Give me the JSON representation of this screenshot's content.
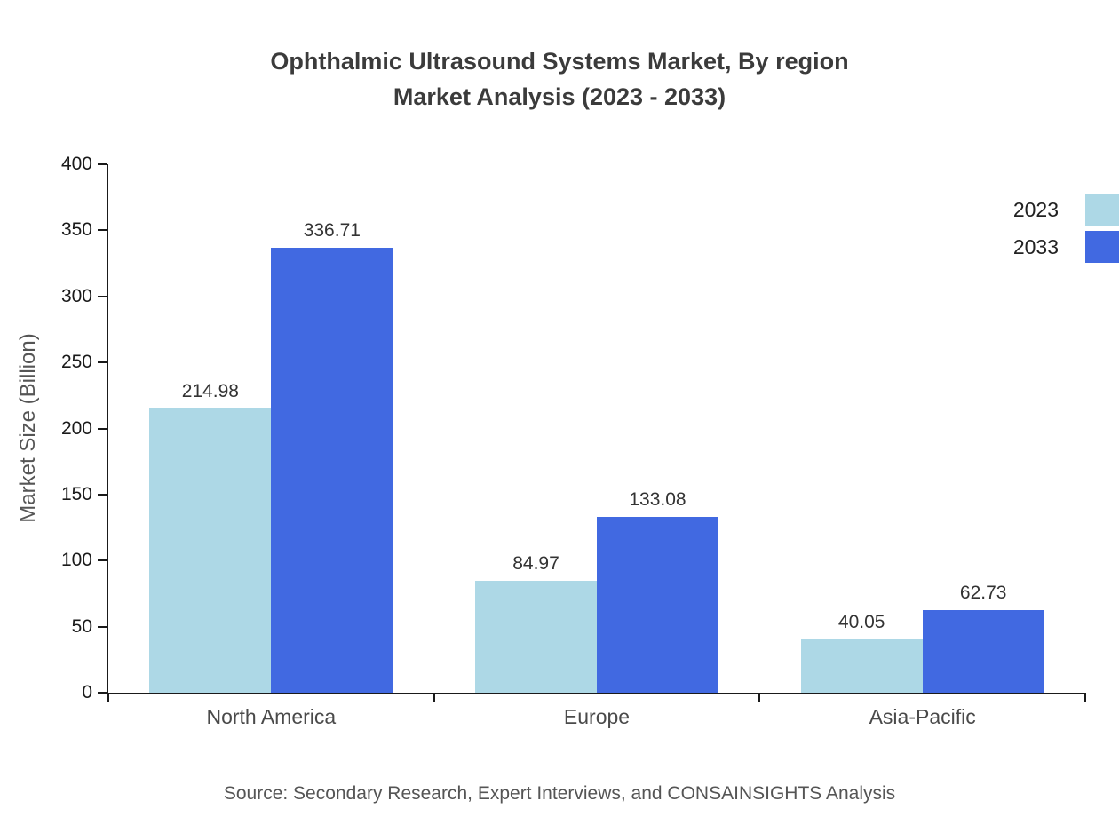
{
  "title": "Ophthalmic Ultrasound Systems Market, By region\nMarket Analysis (2023 - 2033)",
  "source": "Source: Secondary Research, Expert Interviews, and CONSAINSIGHTS Analysis",
  "chart_data": {
    "type": "bar",
    "title": "Ophthalmic Ultrasound Systems Market, By region Market Analysis (2023 - 2033)",
    "categories": [
      "North America",
      "Europe",
      "Asia-Pacific"
    ],
    "series": [
      {
        "name": "2023",
        "color": "#add8e6",
        "values": [
          214.98,
          84.97,
          40.05
        ]
      },
      {
        "name": "2033",
        "color": "#4169e1",
        "values": [
          336.71,
          133.08,
          62.73
        ]
      }
    ],
    "xlabel": "",
    "ylabel": "Market Size (Billion)",
    "ylim": [
      0,
      400
    ],
    "ytick_step": 50,
    "grid": false,
    "legend_position": "top-right",
    "value_labels": true
  }
}
